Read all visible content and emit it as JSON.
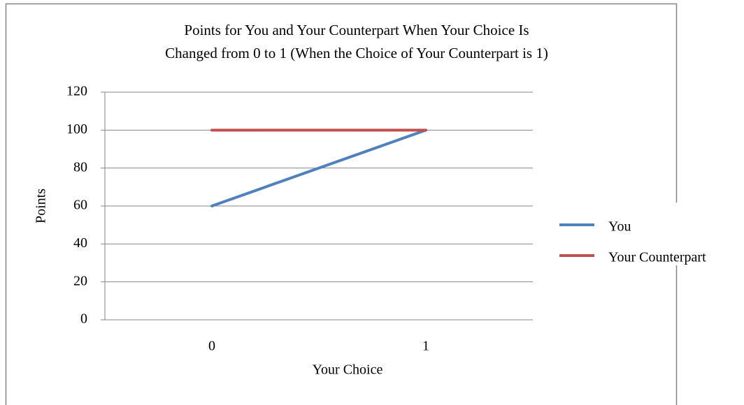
{
  "chart_data": {
    "type": "line",
    "title": [
      "Points for You and Your Counterpart When Your Choice Is",
      "Changed from 0 to 1 (When the Choice of Your Counterpart is 1)"
    ],
    "x_label": "Your Choice",
    "y_label": "Points",
    "categories": [
      "0",
      "1"
    ],
    "series": [
      {
        "name": "You",
        "color": "#4f81bd",
        "values": [
          60,
          100
        ]
      },
      {
        "name": "Your Counterpart",
        "color": "#c0504d",
        "values": [
          100,
          100
        ]
      }
    ],
    "ylim": [
      0,
      120
    ],
    "yticks": [
      0,
      20,
      40,
      60,
      80,
      100,
      120
    ],
    "grid": true,
    "legend": "right"
  }
}
